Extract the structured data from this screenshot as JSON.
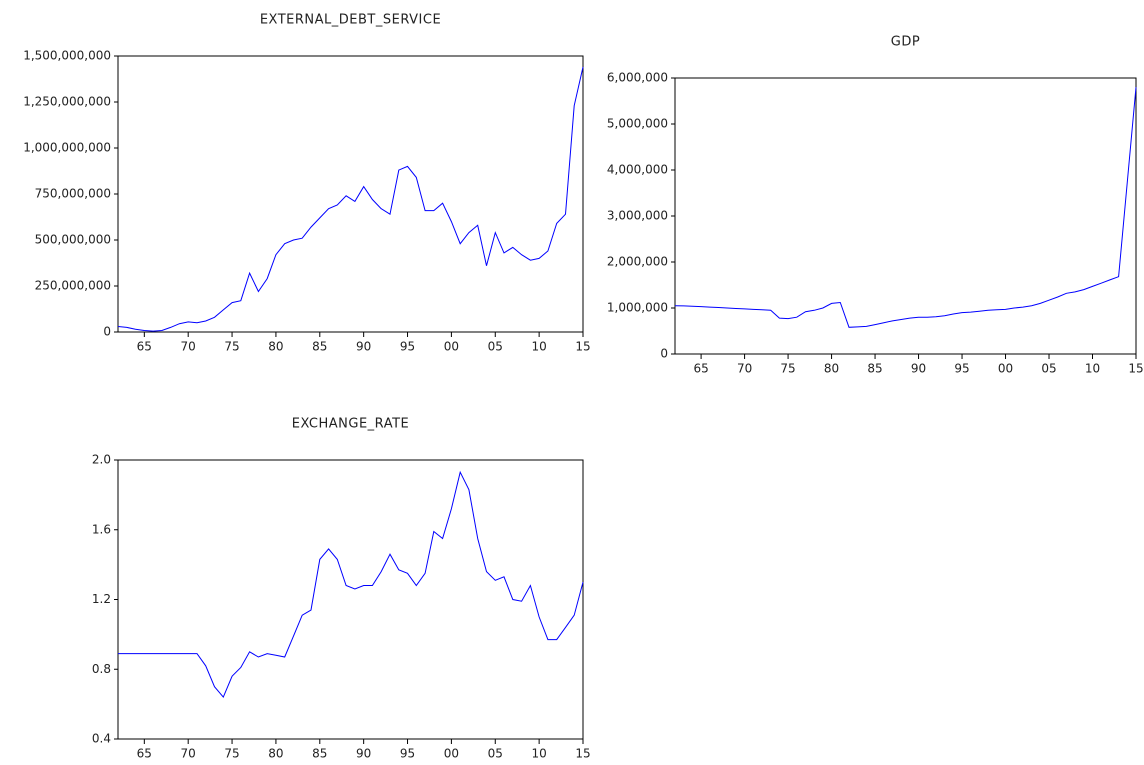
{
  "chart_data": [
    {
      "type": "line",
      "title": "EXTERNAL_DEBT_SERVICE",
      "color": "#0000ff",
      "x": [
        1962,
        1963,
        1964,
        1965,
        1966,
        1967,
        1968,
        1969,
        1970,
        1971,
        1972,
        1973,
        1974,
        1975,
        1976,
        1977,
        1978,
        1979,
        1980,
        1981,
        1982,
        1983,
        1984,
        1985,
        1986,
        1987,
        1988,
        1989,
        1990,
        1991,
        1992,
        1993,
        1994,
        1995,
        1996,
        1997,
        1998,
        1999,
        2000,
        2001,
        2002,
        2003,
        2004,
        2005,
        2006,
        2007,
        2008,
        2009,
        2010,
        2011,
        2012,
        2013,
        2014,
        2015
      ],
      "values": [
        30000000,
        25000000,
        15000000,
        8000000,
        5000000,
        8000000,
        25000000,
        45000000,
        55000000,
        50000000,
        60000000,
        80000000,
        120000000,
        160000000,
        170000000,
        320000000,
        220000000,
        290000000,
        420000000,
        480000000,
        500000000,
        510000000,
        570000000,
        620000000,
        670000000,
        690000000,
        740000000,
        710000000,
        790000000,
        720000000,
        670000000,
        640000000,
        880000000,
        900000000,
        840000000,
        660000000,
        660000000,
        700000000,
        600000000,
        480000000,
        540000000,
        580000000,
        360000000,
        540000000,
        430000000,
        460000000,
        420000000,
        390000000,
        400000000,
        440000000,
        590000000,
        640000000,
        1230000000,
        1440000000
      ],
      "xlim": [
        1962,
        2015
      ],
      "xticks": [
        {
          "value": 1965,
          "label": "65"
        },
        {
          "value": 1970,
          "label": "70"
        },
        {
          "value": 1975,
          "label": "75"
        },
        {
          "value": 1980,
          "label": "80"
        },
        {
          "value": 1985,
          "label": "85"
        },
        {
          "value": 1990,
          "label": "90"
        },
        {
          "value": 1995,
          "label": "95"
        },
        {
          "value": 2000,
          "label": "00"
        },
        {
          "value": 2005,
          "label": "05"
        },
        {
          "value": 2010,
          "label": "10"
        },
        {
          "value": 2015,
          "label": "15"
        }
      ],
      "ylim": [
        0,
        1500000000
      ],
      "yticks": [
        0,
        {
          "value": 250000000,
          "label": "250,000,000"
        },
        {
          "value": 500000000,
          "label": "500,000,000"
        },
        {
          "value": 750000000,
          "label": "750,000,000"
        },
        {
          "value": 1000000000,
          "label": "1,000,000,000"
        },
        {
          "value": 1250000000,
          "label": "1,250,000,000"
        },
        {
          "value": 1500000000,
          "label": "1,500,000,000"
        }
      ]
    },
    {
      "type": "line",
      "title": "GDP",
      "color": "#0000ff",
      "x": [
        1962,
        1963,
        1964,
        1965,
        1966,
        1967,
        1968,
        1969,
        1970,
        1971,
        1972,
        1973,
        1974,
        1975,
        1976,
        1977,
        1978,
        1979,
        1980,
        1981,
        1982,
        1983,
        1984,
        1985,
        1986,
        1987,
        1988,
        1989,
        1990,
        1991,
        1992,
        1993,
        1994,
        1995,
        1996,
        1997,
        1998,
        1999,
        2000,
        2001,
        2002,
        2003,
        2004,
        2005,
        2006,
        2007,
        2008,
        2009,
        2010,
        2011,
        2012,
        2013,
        2014,
        2015
      ],
      "values": [
        1050000,
        1045000,
        1040000,
        1030000,
        1020000,
        1010000,
        1000000,
        990000,
        980000,
        970000,
        960000,
        950000,
        780000,
        770000,
        800000,
        920000,
        950000,
        1000000,
        1100000,
        1120000,
        580000,
        590000,
        600000,
        640000,
        680000,
        720000,
        750000,
        780000,
        800000,
        800000,
        810000,
        830000,
        870000,
        900000,
        910000,
        930000,
        950000,
        960000,
        970000,
        1000000,
        1020000,
        1050000,
        1100000,
        1170000,
        1240000,
        1320000,
        1350000,
        1400000,
        1470000,
        1540000,
        1610000,
        1680000,
        3740000,
        5800000
      ],
      "xlim": [
        1962,
        2015
      ],
      "xticks": [
        {
          "value": 1965,
          "label": "65"
        },
        {
          "value": 1970,
          "label": "70"
        },
        {
          "value": 1975,
          "label": "75"
        },
        {
          "value": 1980,
          "label": "80"
        },
        {
          "value": 1985,
          "label": "85"
        },
        {
          "value": 1990,
          "label": "90"
        },
        {
          "value": 1995,
          "label": "95"
        },
        {
          "value": 2000,
          "label": "00"
        },
        {
          "value": 2005,
          "label": "05"
        },
        {
          "value": 2010,
          "label": "10"
        },
        {
          "value": 2015,
          "label": "15"
        }
      ],
      "ylim": [
        0,
        6000000
      ],
      "yticks": [
        0,
        {
          "value": 1000000,
          "label": "1,000,000"
        },
        {
          "value": 2000000,
          "label": "2,000,000"
        },
        {
          "value": 3000000,
          "label": "3,000,000"
        },
        {
          "value": 4000000,
          "label": "4,000,000"
        },
        {
          "value": 5000000,
          "label": "5,000,000"
        },
        {
          "value": 6000000,
          "label": "6,000,000"
        }
      ]
    },
    {
      "type": "line",
      "title": "EXCHANGE_RATE",
      "color": "#0000ff",
      "x": [
        1962,
        1963,
        1964,
        1965,
        1966,
        1967,
        1968,
        1969,
        1970,
        1971,
        1972,
        1973,
        1974,
        1975,
        1976,
        1977,
        1978,
        1979,
        1980,
        1981,
        1982,
        1983,
        1984,
        1985,
        1986,
        1987,
        1988,
        1989,
        1990,
        1991,
        1992,
        1993,
        1994,
        1995,
        1996,
        1997,
        1998,
        1999,
        2000,
        2001,
        2002,
        2003,
        2004,
        2005,
        2006,
        2007,
        2008,
        2009,
        2010,
        2011,
        2012,
        2013,
        2014,
        2015
      ],
      "values": [
        0.89,
        0.89,
        0.89,
        0.89,
        0.89,
        0.89,
        0.89,
        0.89,
        0.89,
        0.89,
        0.82,
        0.7,
        0.64,
        0.76,
        0.81,
        0.9,
        0.87,
        0.89,
        0.88,
        0.87,
        0.99,
        1.11,
        1.14,
        1.43,
        1.49,
        1.43,
        1.28,
        1.26,
        1.28,
        1.28,
        1.36,
        1.46,
        1.37,
        1.35,
        1.28,
        1.35,
        1.59,
        1.55,
        1.72,
        1.93,
        1.83,
        1.55,
        1.36,
        1.31,
        1.33,
        1.2,
        1.19,
        1.28,
        1.1,
        0.97,
        0.97,
        1.04,
        1.11,
        1.3
      ],
      "xlim": [
        1962,
        2015
      ],
      "xticks": [
        {
          "value": 1965,
          "label": "65"
        },
        {
          "value": 1970,
          "label": "70"
        },
        {
          "value": 1975,
          "label": "75"
        },
        {
          "value": 1980,
          "label": "80"
        },
        {
          "value": 1985,
          "label": "85"
        },
        {
          "value": 1990,
          "label": "90"
        },
        {
          "value": 1995,
          "label": "95"
        },
        {
          "value": 2000,
          "label": "00"
        },
        {
          "value": 2005,
          "label": "05"
        },
        {
          "value": 2010,
          "label": "10"
        },
        {
          "value": 2015,
          "label": "15"
        }
      ],
      "ylim": [
        0.4,
        2.0
      ],
      "yticks": [
        0.4,
        0.8,
        1.2,
        1.6,
        {
          "value": 2.0,
          "label": "2.0"
        }
      ]
    }
  ]
}
